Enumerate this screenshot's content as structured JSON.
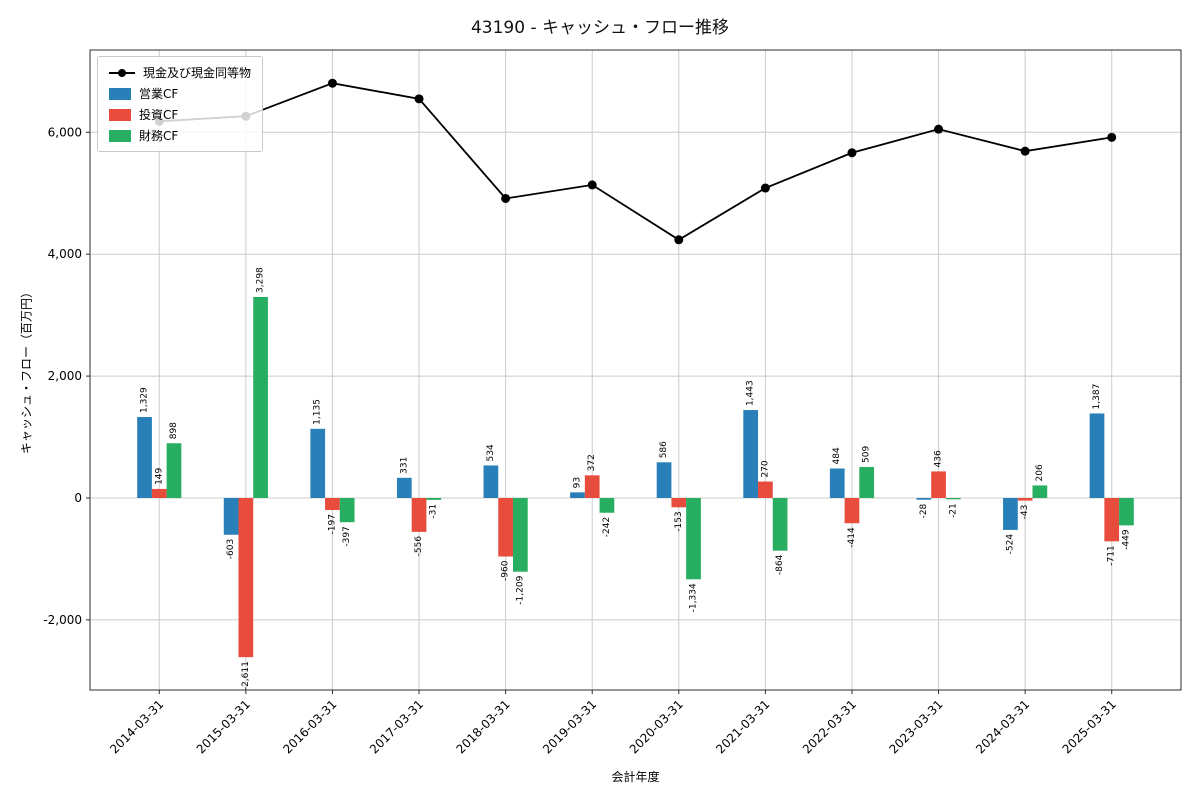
{
  "title": "43190 - キャッシュ・フロー推移",
  "chart_data": {
    "type": "bar",
    "subtype": "grouped-bars-with-line",
    "categories": [
      "2014-03-31",
      "2015-03-31",
      "2016-03-31",
      "2017-03-31",
      "2018-03-31",
      "2019-03-31",
      "2020-03-31",
      "2021-03-31",
      "2022-03-31",
      "2023-03-31",
      "2024-03-31",
      "2025-03-31"
    ],
    "series": [
      {
        "name": "現金及び現金同等物",
        "type": "line",
        "color": "#000000",
        "values": [
          6180,
          6264,
          6805,
          6549,
          4914,
          5137,
          4236,
          5085,
          5664,
          6051,
          5690,
          5917
        ]
      },
      {
        "name": "営業CF",
        "type": "bar",
        "color": "#2980b9",
        "values": [
          1329,
          -603,
          1135,
          331,
          534,
          93,
          586,
          1443,
          484,
          -28,
          -524,
          1387
        ]
      },
      {
        "name": "投資CF",
        "type": "bar",
        "color": "#e74c3c",
        "values": [
          149,
          -2611,
          -197,
          -556,
          -960,
          372,
          -153,
          270,
          -414,
          436,
          -43,
          -711
        ]
      },
      {
        "name": "財務CF",
        "type": "bar",
        "color": "#27ae60",
        "values": [
          898,
          3298,
          -397,
          -31,
          -1209,
          -242,
          -1334,
          -864,
          509,
          -21,
          206,
          -449
        ]
      }
    ],
    "xlabel": "会計年度",
    "ylabel": "キャッシュ・フロー（百万円）",
    "y_ticks": [
      -2000,
      0,
      2000,
      4000,
      6000
    ],
    "ylim": [
      -3150,
      7350
    ],
    "grid": true,
    "legend_position": "upper left",
    "bar_value_labels": true
  },
  "colors": {
    "grid": "#cccccc",
    "frame": "#2b2b2b",
    "label_text": "#000000"
  }
}
